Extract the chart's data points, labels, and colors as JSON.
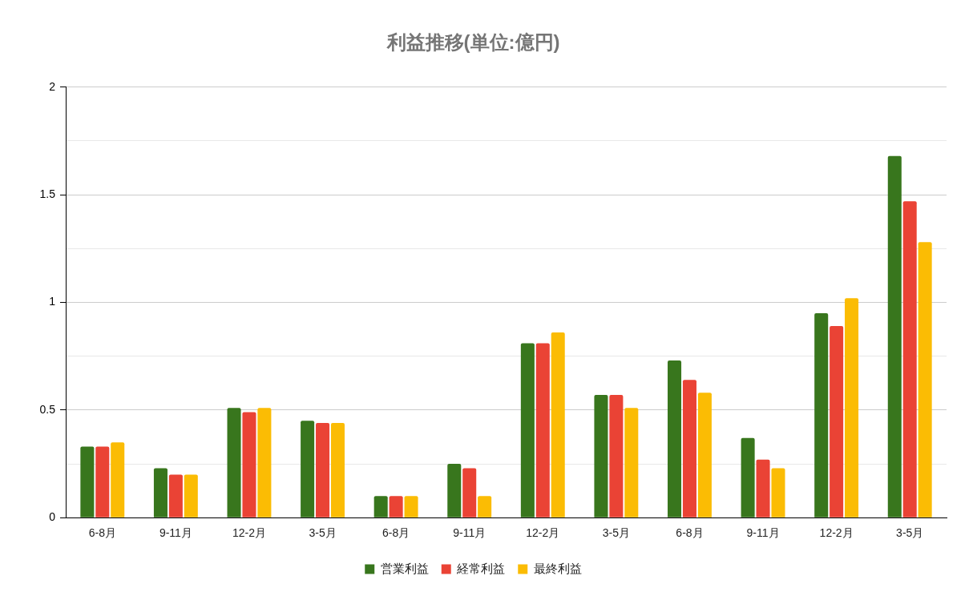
{
  "chart_data": {
    "type": "bar",
    "title": "利益推移(単位:億円)",
    "categories": [
      "6-8月",
      "9-11月",
      "12-2月",
      "3-5月",
      "6-8月",
      "9-11月",
      "12-2月",
      "3-5月",
      "6-8月",
      "9-11月",
      "12-2月",
      "3-5月"
    ],
    "series": [
      {
        "name": "営業利益",
        "color": "#38761d",
        "values": [
          0.33,
          0.23,
          0.51,
          0.45,
          0.1,
          0.25,
          0.81,
          0.57,
          0.73,
          0.37,
          0.95,
          1.68
        ]
      },
      {
        "name": "経常利益",
        "color": "#ea4335",
        "values": [
          0.33,
          0.2,
          0.49,
          0.44,
          0.1,
          0.23,
          0.81,
          0.57,
          0.64,
          0.27,
          0.89,
          1.47
        ]
      },
      {
        "name": "最終利益",
        "color": "#fbbc04",
        "values": [
          0.35,
          0.2,
          0.51,
          0.44,
          0.1,
          0.1,
          0.86,
          0.51,
          0.58,
          0.23,
          1.02,
          1.28
        ]
      }
    ],
    "ylim": [
      0,
      2
    ],
    "yticks": [
      0,
      {
        "value": 0.25,
        "label": null
      },
      0.5,
      {
        "value": 0.75,
        "label": null
      },
      1,
      {
        "value": 1.25,
        "label": null
      },
      1.5,
      {
        "value": 1.75,
        "label": null
      },
      2
    ],
    "grid": "y",
    "legend": "bottom"
  }
}
